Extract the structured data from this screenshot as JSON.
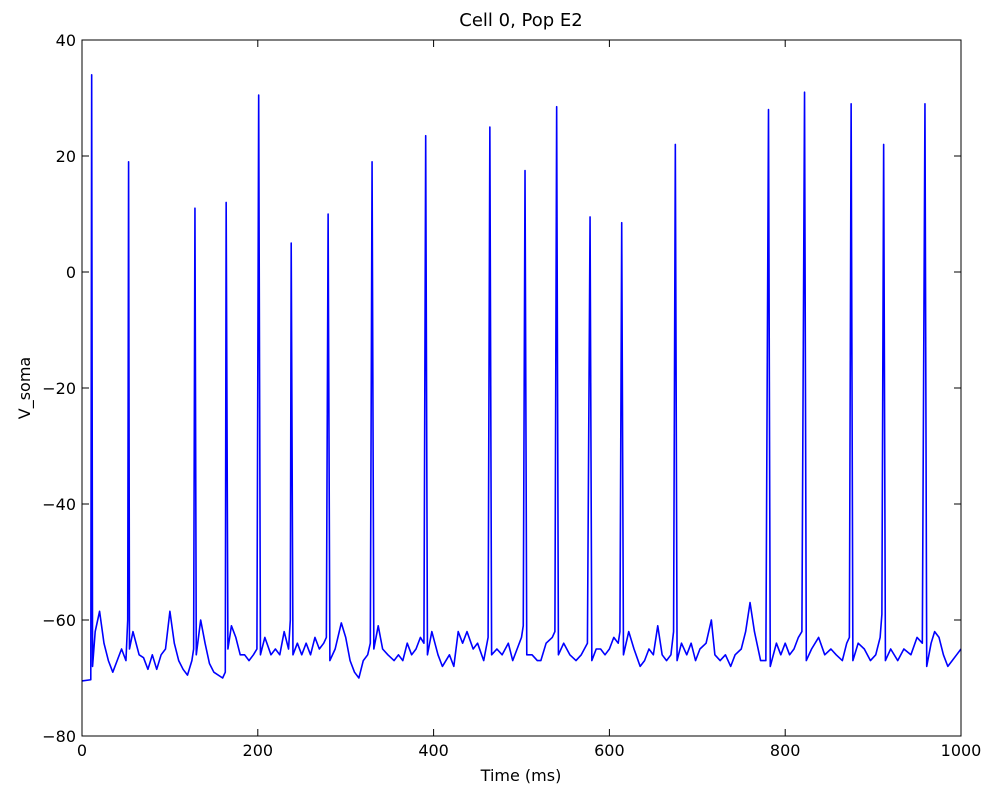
{
  "chart_data": {
    "type": "line",
    "title": "Cell 0, Pop E2",
    "xlabel": "Time (ms)",
    "ylabel": "V_soma",
    "color": "#0000ff",
    "xlim": [
      0,
      1000
    ],
    "ylim": [
      -80,
      40
    ],
    "xticks": [
      0,
      200,
      400,
      600,
      800,
      1000
    ],
    "yticks": [
      {
        "value": -80,
        "label": "−80"
      },
      {
        "value": -60,
        "label": "−60"
      },
      {
        "value": -40,
        "label": "−40"
      },
      {
        "value": -20,
        "label": "−20"
      },
      0,
      20,
      40
    ],
    "grid": false,
    "x": [
      0,
      10,
      11,
      12,
      15,
      20,
      25,
      30,
      35,
      40,
      45,
      50,
      52,
      53,
      54,
      58,
      65,
      70,
      75,
      80,
      85,
      90,
      95,
      100,
      105,
      110,
      115,
      120,
      125,
      127,
      128.5,
      130,
      135,
      140,
      145,
      150,
      160,
      163,
      164,
      166,
      170,
      175,
      180,
      185,
      190,
      195,
      199,
      201,
      203,
      208,
      215,
      220,
      225,
      230,
      235,
      237,
      238,
      240,
      245,
      250,
      255,
      260,
      265,
      270,
      275,
      278,
      280,
      282,
      288,
      295,
      300,
      305,
      310,
      315,
      320,
      325,
      328,
      330,
      332,
      337,
      342,
      348,
      355,
      360,
      365,
      370,
      375,
      380,
      385,
      389,
      391,
      393,
      398,
      405,
      410,
      418,
      423,
      428,
      433,
      438,
      445,
      450,
      457,
      462,
      464,
      466,
      472,
      478,
      485,
      490,
      495,
      500,
      502,
      504,
      506,
      512,
      518,
      522,
      528,
      535,
      538,
      540,
      542,
      548,
      555,
      562,
      568,
      575,
      578,
      580,
      585,
      590,
      595,
      600,
      605,
      610,
      612,
      614,
      616,
      622,
      628,
      635,
      640,
      645,
      650,
      655,
      660,
      665,
      670,
      673,
      675,
      677,
      682,
      688,
      693,
      698,
      703,
      710,
      716,
      720,
      726,
      732,
      738,
      743,
      750,
      755,
      760,
      765,
      772,
      778,
      781,
      783,
      790,
      795,
      800,
      805,
      810,
      815,
      819,
      822,
      824,
      830,
      838,
      845,
      852,
      858,
      865,
      870,
      873,
      875,
      877,
      883,
      890,
      897,
      903,
      908,
      910,
      912,
      914,
      920,
      928,
      935,
      943,
      950,
      956,
      959,
      961,
      966,
      970,
      975,
      980,
      985,
      990,
      995,
      1000
    ],
    "values": [
      -70.5,
      -70.3,
      34,
      -68,
      -62,
      -58.5,
      -64,
      -67,
      -69,
      -67,
      -65,
      -67,
      -60,
      19,
      -65,
      -62,
      -66,
      -66.5,
      -68.5,
      -66,
      -68.5,
      -66,
      -65,
      -58.5,
      -64,
      -67,
      -68.5,
      -69.5,
      -67,
      -65,
      11,
      -66,
      -60,
      -64,
      -67.5,
      -69,
      -70,
      -69,
      12,
      -65,
      -61,
      -63,
      -66,
      -66,
      -67,
      -66,
      -65,
      30.5,
      -66,
      -63,
      -66,
      -65,
      -66,
      -62,
      -65,
      -60,
      5,
      -66,
      -64,
      -66,
      -64,
      -66,
      -63,
      -65,
      -64,
      -63,
      10,
      -67,
      -65,
      -60.5,
      -63,
      -67,
      -69,
      -70,
      -67,
      -66,
      -64,
      19,
      -65,
      -61,
      -65,
      -66,
      -67,
      -66,
      -67,
      -64,
      -66,
      -65,
      -63,
      -64,
      23.5,
      -66,
      -62,
      -66,
      -68,
      -66,
      -68,
      -62,
      -64,
      -62,
      -65,
      -64,
      -67,
      -63,
      25,
      -66,
      -65,
      -66,
      -64,
      -67,
      -65,
      -63,
      -61,
      17.5,
      -66,
      -66,
      -67,
      -67,
      -64,
      -63,
      -62,
      28.5,
      -66,
      -64,
      -66,
      -67,
      -66,
      -64,
      9.5,
      -67,
      -65,
      -65,
      -66,
      -65,
      -63,
      -64,
      -62,
      8.5,
      -66,
      -62,
      -65,
      -68,
      -67,
      -65,
      -66,
      -61,
      -66,
      -67,
      -66,
      -62,
      22,
      -67,
      -64,
      -66,
      -64,
      -67,
      -65,
      -64,
      -60,
      -66,
      -67,
      -66,
      -68,
      -66,
      -65,
      -62,
      -57,
      -62,
      -67,
      -67,
      28,
      -68,
      -64,
      -66,
      -64,
      -66,
      -65,
      -63,
      -62,
      31,
      -67,
      -65,
      -63,
      -66,
      -65,
      -66,
      -67,
      -64,
      -63,
      29,
      -67,
      -64,
      -65,
      -67,
      -66,
      -63,
      -59,
      22,
      -67,
      -65,
      -67,
      -65,
      -66,
      -63,
      -64,
      29,
      -68,
      -64,
      -62,
      -63,
      -66,
      -68,
      -67,
      -66,
      -65
    ]
  }
}
